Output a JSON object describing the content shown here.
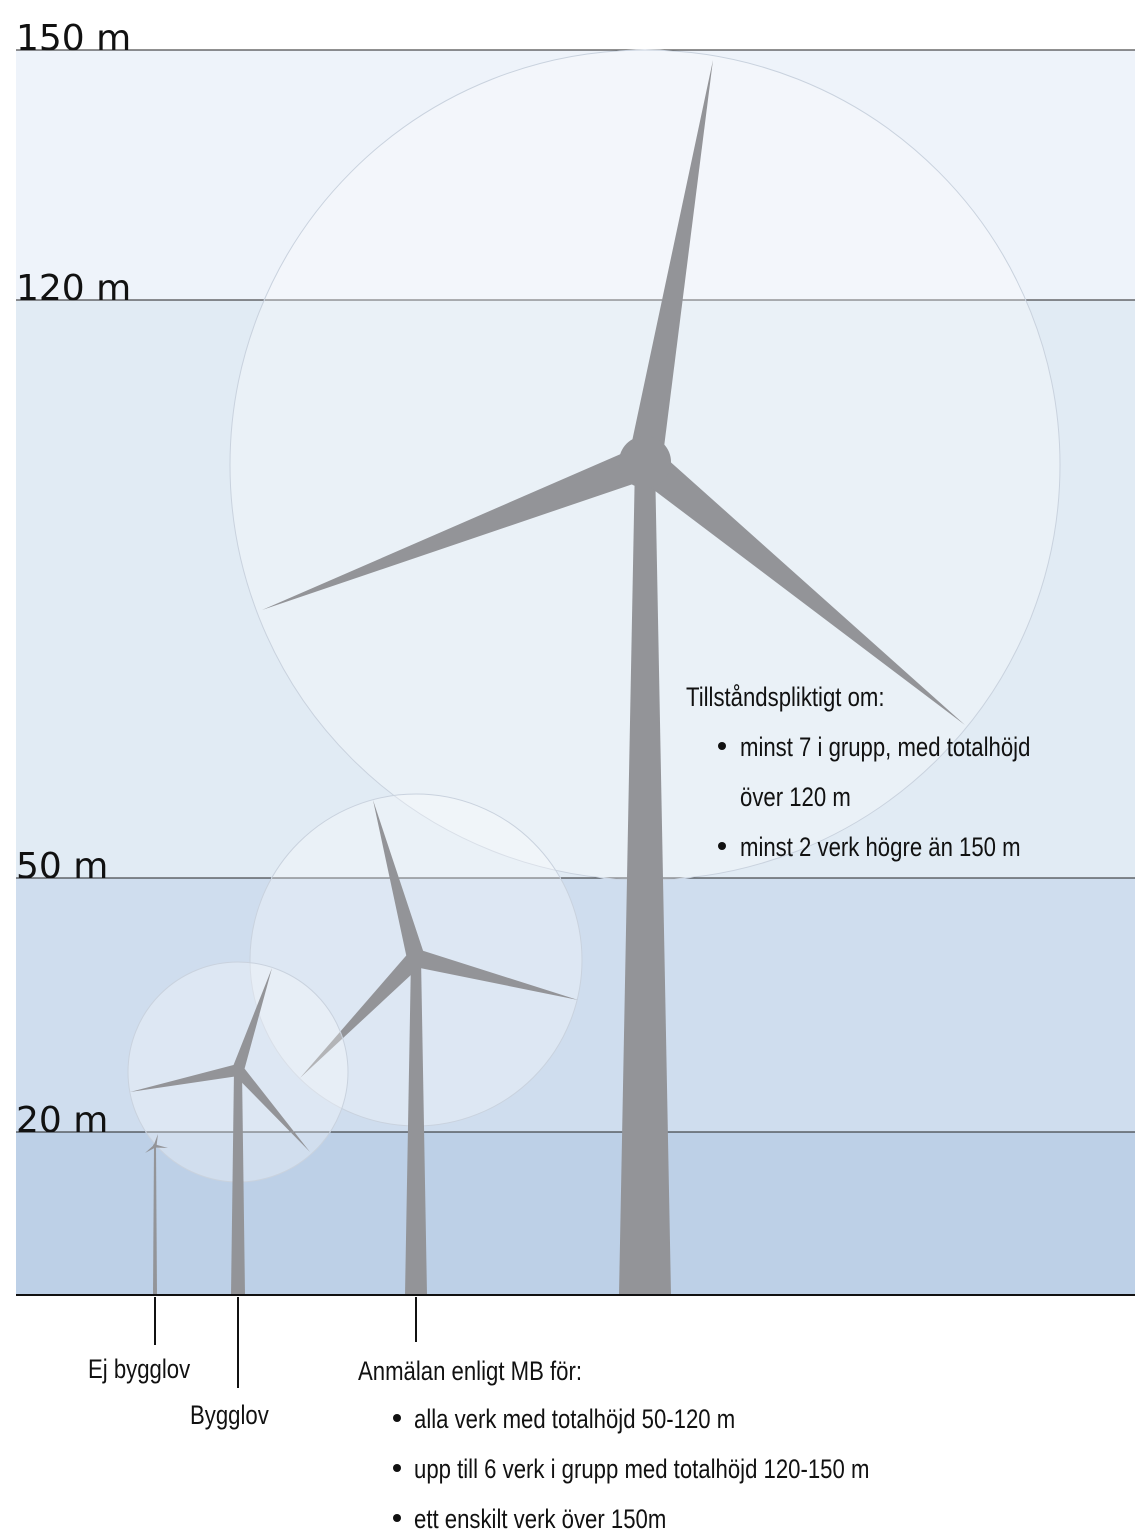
{
  "levels": [
    "150 m",
    "120 m",
    "50 m",
    "20 m"
  ],
  "labels": {
    "ej_bygglov": "Ej bygglov",
    "bygglov": "Bygglov",
    "anmalan": {
      "title": "Anmälan enligt MB för:",
      "items": [
        "alla verk med totalhöjd 50-120 m",
        "upp till 6 verk i grupp med totalhöjd 120-150 m",
        "ett enskilt verk över 150m"
      ]
    },
    "tillstand": {
      "title": "Tillståndspliktigt om:",
      "items": [
        "minst 7 i grupp, med totalhöjd",
        "över 120 m",
        "minst 2 verk högre än 150 m"
      ]
    }
  }
}
